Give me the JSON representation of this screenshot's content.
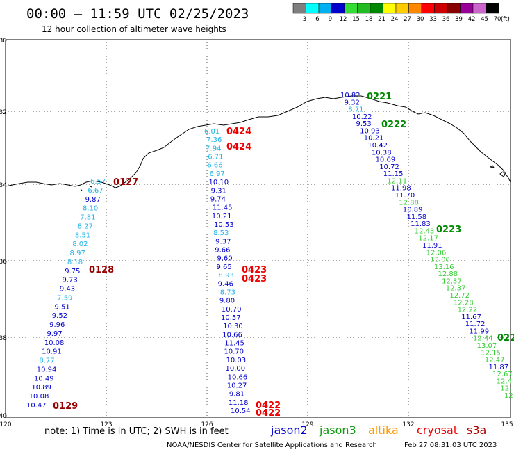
{
  "header": {
    "title": "00:00 – 11:59 UTC 02/25/2023",
    "subtitle": "12 hour collection of altimeter wave heights"
  },
  "colorbar": {
    "unit": "(ft)",
    "items": [
      {
        "label": "3",
        "color": "#7f7f7f"
      },
      {
        "label": "6",
        "color": "#00ffff"
      },
      {
        "label": "9",
        "color": "#00b0f0"
      },
      {
        "label": "12",
        "color": "#0000cc"
      },
      {
        "label": "15",
        "color": "#33dd33"
      },
      {
        "label": "18",
        "color": "#22bb22"
      },
      {
        "label": "21",
        "color": "#008800"
      },
      {
        "label": "24",
        "color": "#ffff00"
      },
      {
        "label": "27",
        "color": "#ffcc00"
      },
      {
        "label": "30",
        "color": "#ff8800"
      },
      {
        "label": "33",
        "color": "#ff0000"
      },
      {
        "label": "36",
        "color": "#cc0000"
      },
      {
        "label": "39",
        "color": "#880000"
      },
      {
        "label": "42",
        "color": "#990099"
      },
      {
        "label": "45",
        "color": "#cc66cc"
      },
      {
        "label": "70",
        "color": "#000000"
      }
    ]
  },
  "map": {
    "lat_ticks": [
      "30",
      "32",
      "34",
      "36",
      "38",
      "40"
    ],
    "lon_ticks": [
      "120",
      "123",
      "126",
      "129",
      "132",
      "135"
    ],
    "lat_range": [
      30,
      40
    ],
    "lon_range": [
      120,
      135
    ],
    "grid": "dotted"
  },
  "colors": {
    "sat1": "#0000cc",
    "sat1_light": "#1fb5e8",
    "sat2_green": "#33cc33",
    "time_red": "#ee0000",
    "time_darkred": "#990000",
    "time_green": "#008800"
  },
  "tracks": [
    {
      "id": "track-west",
      "labels": [
        {
          "text": "6.57",
          "color": "#1fb5e8"
        },
        {
          "text": "6.67",
          "color": "#1fb5e8"
        },
        {
          "text": "9.87",
          "color": "#0000cc"
        },
        {
          "text": "8.10",
          "color": "#1fb5e8"
        },
        {
          "text": "7.81",
          "color": "#1fb5e8"
        },
        {
          "text": "8.27",
          "color": "#1fb5e8"
        },
        {
          "text": "8.51",
          "color": "#1fb5e8"
        },
        {
          "text": "8.02",
          "color": "#1fb5e8"
        },
        {
          "text": "8.97",
          "color": "#1fb5e8"
        },
        {
          "text": "8.18",
          "color": "#1fb5e8"
        },
        {
          "text": "9.75",
          "color": "#0000cc"
        },
        {
          "text": "9.73",
          "color": "#0000cc"
        },
        {
          "text": "9.43",
          "color": "#0000cc"
        },
        {
          "text": "7.59",
          "color": "#1fb5e8"
        },
        {
          "text": "9.51",
          "color": "#0000cc"
        },
        {
          "text": "9.52",
          "color": "#0000cc"
        },
        {
          "text": "9.96",
          "color": "#0000cc"
        },
        {
          "text": "9.97",
          "color": "#0000cc"
        },
        {
          "text": "10.08",
          "color": "#0000cc"
        },
        {
          "text": "10.91",
          "color": "#0000cc"
        },
        {
          "text": "8.77",
          "color": "#1fb5e8"
        },
        {
          "text": "10.94",
          "color": "#0000cc"
        },
        {
          "text": "10.49",
          "color": "#0000cc"
        },
        {
          "text": "10.89",
          "color": "#0000cc"
        },
        {
          "text": "10.08",
          "color": "#0000cc"
        },
        {
          "text": "10.47",
          "color": "#0000cc"
        }
      ],
      "times": [
        {
          "text": "0127",
          "color": "#990000"
        },
        {
          "text": "0128",
          "color": "#990000"
        },
        {
          "text": "0129",
          "color": "#990000"
        }
      ]
    },
    {
      "id": "track-middle",
      "labels": [
        {
          "text": "6.01",
          "color": "#1fb5e8"
        },
        {
          "text": "7.36",
          "color": "#1fb5e8"
        },
        {
          "text": "7.94",
          "color": "#1fb5e8"
        },
        {
          "text": "6.71",
          "color": "#1fb5e8"
        },
        {
          "text": "6.66",
          "color": "#1fb5e8"
        },
        {
          "text": "6.97",
          "color": "#1fb5e8"
        },
        {
          "text": "10.10",
          "color": "#0000cc"
        },
        {
          "text": "9.31",
          "color": "#0000cc"
        },
        {
          "text": "9.74",
          "color": "#0000cc"
        },
        {
          "text": "11.45",
          "color": "#0000cc"
        },
        {
          "text": "10.21",
          "color": "#0000cc"
        },
        {
          "text": "10.53",
          "color": "#0000cc"
        },
        {
          "text": "8.53",
          "color": "#1fb5e8"
        },
        {
          "text": "9.37",
          "color": "#0000cc"
        },
        {
          "text": "9.66",
          "color": "#0000cc"
        },
        {
          "text": "9.60",
          "color": "#0000cc"
        },
        {
          "text": "9.65",
          "color": "#0000cc"
        },
        {
          "text": "8.93",
          "color": "#1fb5e8"
        },
        {
          "text": "9.46",
          "color": "#0000cc"
        },
        {
          "text": "8.73",
          "color": "#1fb5e8"
        },
        {
          "text": "9.80",
          "color": "#0000cc"
        },
        {
          "text": "10.70",
          "color": "#0000cc"
        },
        {
          "text": "10.57",
          "color": "#0000cc"
        },
        {
          "text": "10.30",
          "color": "#0000cc"
        },
        {
          "text": "10.66",
          "color": "#0000cc"
        },
        {
          "text": "11.45",
          "color": "#0000cc"
        },
        {
          "text": "10.70",
          "color": "#0000cc"
        },
        {
          "text": "10.03",
          "color": "#0000cc"
        },
        {
          "text": "10.00",
          "color": "#0000cc"
        },
        {
          "text": "10.66",
          "color": "#0000cc"
        },
        {
          "text": "10.27",
          "color": "#0000cc"
        },
        {
          "text": "9.81",
          "color": "#0000cc"
        },
        {
          "text": "11.18",
          "color": "#0000cc"
        },
        {
          "text": "10.54",
          "color": "#0000cc"
        }
      ],
      "times": [
        {
          "text": "0424",
          "color": "#ee0000"
        },
        {
          "text": "0424",
          "color": "#ee0000"
        },
        {
          "text": "0423",
          "color": "#ee0000"
        },
        {
          "text": "0423",
          "color": "#ee0000"
        },
        {
          "text": "0422",
          "color": "#ee0000"
        },
        {
          "text": "0422",
          "color": "#ee0000"
        }
      ]
    },
    {
      "id": "track-east",
      "labels": [
        {
          "text": "10.82",
          "color": "#0000cc"
        },
        {
          "text": "9.32",
          "color": "#0000cc"
        },
        {
          "text": "8.71",
          "color": "#1fb5e8"
        },
        {
          "text": "10.22",
          "color": "#0000cc"
        },
        {
          "text": "9.53",
          "color": "#0000cc"
        },
        {
          "text": "10.93",
          "color": "#0000cc"
        },
        {
          "text": "10.21",
          "color": "#0000cc"
        },
        {
          "text": "10.42",
          "color": "#0000cc"
        },
        {
          "text": "10.38",
          "color": "#0000cc"
        },
        {
          "text": "10.69",
          "color": "#0000cc"
        },
        {
          "text": "10.72",
          "color": "#0000cc"
        },
        {
          "text": "11.15",
          "color": "#0000cc"
        },
        {
          "text": "12.11",
          "color": "#33cc33"
        },
        {
          "text": "11.98",
          "color": "#0000cc"
        },
        {
          "text": "11.70",
          "color": "#0000cc"
        },
        {
          "text": "12.88",
          "color": "#33cc33"
        },
        {
          "text": "10.89",
          "color": "#0000cc"
        },
        {
          "text": "11.58",
          "color": "#0000cc"
        },
        {
          "text": "11.83",
          "color": "#0000cc"
        },
        {
          "text": "12.43",
          "color": "#33cc33"
        },
        {
          "text": "12.17",
          "color": "#33cc33"
        },
        {
          "text": "11.91",
          "color": "#0000cc"
        },
        {
          "text": "12.06",
          "color": "#33cc33"
        },
        {
          "text": "13.00",
          "color": "#33cc33"
        },
        {
          "text": "13.16",
          "color": "#33cc33"
        },
        {
          "text": "12.88",
          "color": "#33cc33"
        },
        {
          "text": "12.37",
          "color": "#33cc33"
        },
        {
          "text": "12.37",
          "color": "#33cc33"
        },
        {
          "text": "12.72",
          "color": "#33cc33"
        },
        {
          "text": "12.28",
          "color": "#33cc33"
        },
        {
          "text": "12.22",
          "color": "#33cc33"
        },
        {
          "text": "11.67",
          "color": "#0000cc"
        },
        {
          "text": "11.72",
          "color": "#0000cc"
        },
        {
          "text": "11.99",
          "color": "#0000cc"
        },
        {
          "text": "12.44",
          "color": "#33cc33"
        },
        {
          "text": "13.07",
          "color": "#33cc33"
        },
        {
          "text": "12.15",
          "color": "#33cc33"
        },
        {
          "text": "12.47",
          "color": "#33cc33"
        },
        {
          "text": "11.87",
          "color": "#0000cc"
        },
        {
          "text": "12.67",
          "color": "#33cc33"
        },
        {
          "text": "12.4",
          "color": "#33cc33"
        },
        {
          "text": "12.",
          "color": "#33cc33"
        },
        {
          "text": "12",
          "color": "#33cc33"
        }
      ],
      "times": [
        {
          "text": "0221",
          "color": "#008800"
        },
        {
          "text": "0222",
          "color": "#008800"
        },
        {
          "text": "0223",
          "color": "#008800"
        },
        {
          "text": "022",
          "color": "#008800"
        }
      ]
    }
  ],
  "footer": {
    "note": "note: 1) Time is in UTC; 2) SWH is in feet",
    "satellites": [
      {
        "name": "jason2",
        "color": "#0000cc"
      },
      {
        "name": "jason3",
        "color": "#119911"
      },
      {
        "name": "altika",
        "color": "#ff9900"
      },
      {
        "name": "cryosat",
        "color": "#ee0000"
      },
      {
        "name": "s3a",
        "color": "#aa0000"
      }
    ],
    "credit": "NOAA/NESDIS Center for Satellite Applications and Research",
    "timestamp": "Feb 27 08:31:03 UTC 2023"
  }
}
